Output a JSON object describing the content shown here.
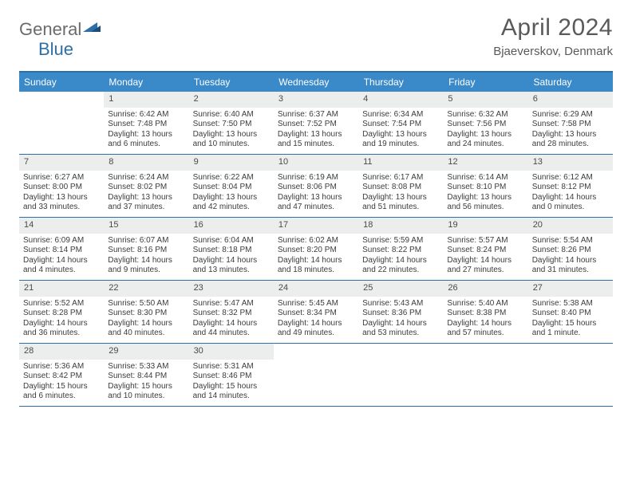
{
  "brand": {
    "part1": "General",
    "part2": "Blue"
  },
  "title": "April 2024",
  "location": "Bjaeverskov, Denmark",
  "colors": {
    "header_bg": "#3a89c9",
    "header_border": "#2f6fa8",
    "daynum_bg": "#eceded",
    "text": "#3c3c3c",
    "brand_gray": "#6b6b6b",
    "brand_blue": "#2f6fa8"
  },
  "weekdays": [
    "Sunday",
    "Monday",
    "Tuesday",
    "Wednesday",
    "Thursday",
    "Friday",
    "Saturday"
  ],
  "weeks": [
    [
      null,
      {
        "n": "1",
        "sr": "Sunrise: 6:42 AM",
        "ss": "Sunset: 7:48 PM",
        "d1": "Daylight: 13 hours",
        "d2": "and 6 minutes."
      },
      {
        "n": "2",
        "sr": "Sunrise: 6:40 AM",
        "ss": "Sunset: 7:50 PM",
        "d1": "Daylight: 13 hours",
        "d2": "and 10 minutes."
      },
      {
        "n": "3",
        "sr": "Sunrise: 6:37 AM",
        "ss": "Sunset: 7:52 PM",
        "d1": "Daylight: 13 hours",
        "d2": "and 15 minutes."
      },
      {
        "n": "4",
        "sr": "Sunrise: 6:34 AM",
        "ss": "Sunset: 7:54 PM",
        "d1": "Daylight: 13 hours",
        "d2": "and 19 minutes."
      },
      {
        "n": "5",
        "sr": "Sunrise: 6:32 AM",
        "ss": "Sunset: 7:56 PM",
        "d1": "Daylight: 13 hours",
        "d2": "and 24 minutes."
      },
      {
        "n": "6",
        "sr": "Sunrise: 6:29 AM",
        "ss": "Sunset: 7:58 PM",
        "d1": "Daylight: 13 hours",
        "d2": "and 28 minutes."
      }
    ],
    [
      {
        "n": "7",
        "sr": "Sunrise: 6:27 AM",
        "ss": "Sunset: 8:00 PM",
        "d1": "Daylight: 13 hours",
        "d2": "and 33 minutes."
      },
      {
        "n": "8",
        "sr": "Sunrise: 6:24 AM",
        "ss": "Sunset: 8:02 PM",
        "d1": "Daylight: 13 hours",
        "d2": "and 37 minutes."
      },
      {
        "n": "9",
        "sr": "Sunrise: 6:22 AM",
        "ss": "Sunset: 8:04 PM",
        "d1": "Daylight: 13 hours",
        "d2": "and 42 minutes."
      },
      {
        "n": "10",
        "sr": "Sunrise: 6:19 AM",
        "ss": "Sunset: 8:06 PM",
        "d1": "Daylight: 13 hours",
        "d2": "and 47 minutes."
      },
      {
        "n": "11",
        "sr": "Sunrise: 6:17 AM",
        "ss": "Sunset: 8:08 PM",
        "d1": "Daylight: 13 hours",
        "d2": "and 51 minutes."
      },
      {
        "n": "12",
        "sr": "Sunrise: 6:14 AM",
        "ss": "Sunset: 8:10 PM",
        "d1": "Daylight: 13 hours",
        "d2": "and 56 minutes."
      },
      {
        "n": "13",
        "sr": "Sunrise: 6:12 AM",
        "ss": "Sunset: 8:12 PM",
        "d1": "Daylight: 14 hours",
        "d2": "and 0 minutes."
      }
    ],
    [
      {
        "n": "14",
        "sr": "Sunrise: 6:09 AM",
        "ss": "Sunset: 8:14 PM",
        "d1": "Daylight: 14 hours",
        "d2": "and 4 minutes."
      },
      {
        "n": "15",
        "sr": "Sunrise: 6:07 AM",
        "ss": "Sunset: 8:16 PM",
        "d1": "Daylight: 14 hours",
        "d2": "and 9 minutes."
      },
      {
        "n": "16",
        "sr": "Sunrise: 6:04 AM",
        "ss": "Sunset: 8:18 PM",
        "d1": "Daylight: 14 hours",
        "d2": "and 13 minutes."
      },
      {
        "n": "17",
        "sr": "Sunrise: 6:02 AM",
        "ss": "Sunset: 8:20 PM",
        "d1": "Daylight: 14 hours",
        "d2": "and 18 minutes."
      },
      {
        "n": "18",
        "sr": "Sunrise: 5:59 AM",
        "ss": "Sunset: 8:22 PM",
        "d1": "Daylight: 14 hours",
        "d2": "and 22 minutes."
      },
      {
        "n": "19",
        "sr": "Sunrise: 5:57 AM",
        "ss": "Sunset: 8:24 PM",
        "d1": "Daylight: 14 hours",
        "d2": "and 27 minutes."
      },
      {
        "n": "20",
        "sr": "Sunrise: 5:54 AM",
        "ss": "Sunset: 8:26 PM",
        "d1": "Daylight: 14 hours",
        "d2": "and 31 minutes."
      }
    ],
    [
      {
        "n": "21",
        "sr": "Sunrise: 5:52 AM",
        "ss": "Sunset: 8:28 PM",
        "d1": "Daylight: 14 hours",
        "d2": "and 36 minutes."
      },
      {
        "n": "22",
        "sr": "Sunrise: 5:50 AM",
        "ss": "Sunset: 8:30 PM",
        "d1": "Daylight: 14 hours",
        "d2": "and 40 minutes."
      },
      {
        "n": "23",
        "sr": "Sunrise: 5:47 AM",
        "ss": "Sunset: 8:32 PM",
        "d1": "Daylight: 14 hours",
        "d2": "and 44 minutes."
      },
      {
        "n": "24",
        "sr": "Sunrise: 5:45 AM",
        "ss": "Sunset: 8:34 PM",
        "d1": "Daylight: 14 hours",
        "d2": "and 49 minutes."
      },
      {
        "n": "25",
        "sr": "Sunrise: 5:43 AM",
        "ss": "Sunset: 8:36 PM",
        "d1": "Daylight: 14 hours",
        "d2": "and 53 minutes."
      },
      {
        "n": "26",
        "sr": "Sunrise: 5:40 AM",
        "ss": "Sunset: 8:38 PM",
        "d1": "Daylight: 14 hours",
        "d2": "and 57 minutes."
      },
      {
        "n": "27",
        "sr": "Sunrise: 5:38 AM",
        "ss": "Sunset: 8:40 PM",
        "d1": "Daylight: 15 hours",
        "d2": "and 1 minute."
      }
    ],
    [
      {
        "n": "28",
        "sr": "Sunrise: 5:36 AM",
        "ss": "Sunset: 8:42 PM",
        "d1": "Daylight: 15 hours",
        "d2": "and 6 minutes."
      },
      {
        "n": "29",
        "sr": "Sunrise: 5:33 AM",
        "ss": "Sunset: 8:44 PM",
        "d1": "Daylight: 15 hours",
        "d2": "and 10 minutes."
      },
      {
        "n": "30",
        "sr": "Sunrise: 5:31 AM",
        "ss": "Sunset: 8:46 PM",
        "d1": "Daylight: 15 hours",
        "d2": "and 14 minutes."
      },
      null,
      null,
      null,
      null
    ]
  ]
}
